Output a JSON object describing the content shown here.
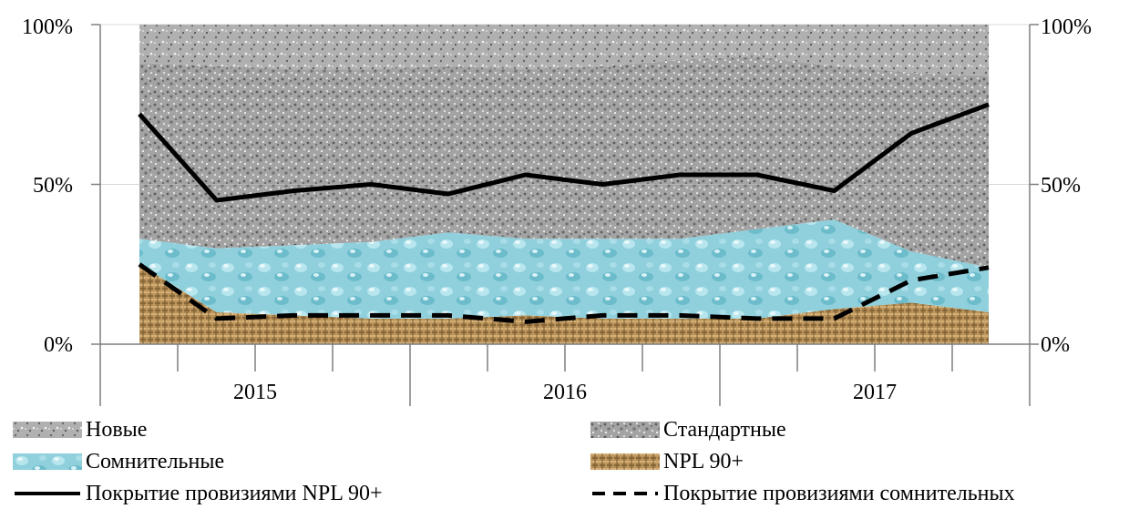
{
  "chart_data": {
    "type": "area",
    "x": [
      "2015",
      "",
      "",
      "",
      "",
      "2016",
      "",
      "",
      "",
      "",
      "2017",
      ""
    ],
    "categories": [
      "2015",
      "2016",
      "2017"
    ],
    "yticks_left": [
      "0%",
      "50%",
      "100%"
    ],
    "yticks_right": [
      "0%",
      "50%",
      "100%"
    ],
    "ylim": [
      0,
      100
    ],
    "series": [
      {
        "name": "NPL 90+",
        "type": "area",
        "values": [
          25,
          10,
          9,
          8,
          8,
          9,
          8,
          8,
          8,
          11,
          13,
          10
        ]
      },
      {
        "name": "Сомнительные",
        "type": "area",
        "values": [
          8,
          20,
          22,
          24,
          27,
          24,
          25,
          25,
          28,
          28,
          16,
          14
        ]
      },
      {
        "name": "Стандартные",
        "type": "area",
        "values": [
          55,
          57,
          55,
          54,
          52,
          53,
          54,
          56,
          54,
          48,
          56,
          60
        ]
      },
      {
        "name": "Новые",
        "type": "area",
        "values": [
          12,
          13,
          14,
          14,
          13,
          14,
          13,
          11,
          10,
          13,
          15,
          16
        ]
      },
      {
        "name": "Покрытие провизиями NPL 90+",
        "type": "line",
        "style": "solid",
        "values": [
          72,
          45,
          48,
          50,
          47,
          53,
          50,
          53,
          53,
          48,
          66,
          75
        ]
      },
      {
        "name": "Покрытие провизиями сомнительных",
        "type": "line",
        "style": "dashed",
        "values": [
          25,
          8,
          9,
          9,
          9,
          7,
          9,
          9,
          8,
          8,
          20,
          24
        ]
      }
    ],
    "grid": true,
    "legend_position": "bottom",
    "colors": {
      "npl": "#b08a52",
      "doubtful": "#8fd0dc",
      "standard": "#9a9a9a",
      "new": "#a6a6a6",
      "line": "#000000"
    }
  },
  "legend": {
    "new_label": "Новые",
    "standard_label": "Стандартные",
    "doubtful_label": "Сомнительные",
    "npl_label": "NPL 90+",
    "cov_npl_label": "Покрытие провизиями NPL 90+",
    "cov_doubtful_label": "Покрытие провизиями сомнительных"
  }
}
